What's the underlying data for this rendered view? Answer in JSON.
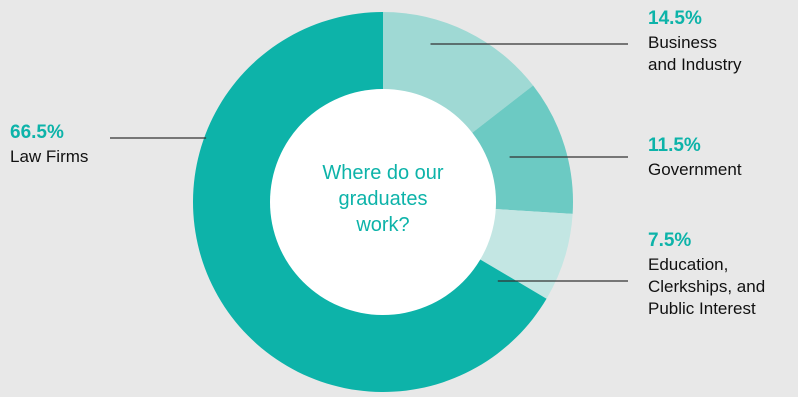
{
  "colors": {
    "background": "#e8e8e8",
    "accent": "#0db3a9",
    "leader": "#333333",
    "hole": "#ffffff"
  },
  "center_text": "Where do our\ngraduates\nwork?",
  "chart_data": {
    "type": "pie",
    "title": "Where do our graduates work?",
    "donut": true,
    "slices": [
      {
        "label": "Business\nand Industry",
        "value": 14.5,
        "display": "14.5%",
        "color": "#9fd9d4"
      },
      {
        "label": "Government",
        "value": 11.5,
        "display": "11.5%",
        "color": "#6ccac3"
      },
      {
        "label": "Education,\nClerkships, and\nPublic Interest",
        "value": 7.5,
        "display": "7.5%",
        "color": "#c3e6e3"
      },
      {
        "label": "Law Firms",
        "value": 66.5,
        "display": "66.5%",
        "color": "#0db3a9"
      }
    ]
  }
}
